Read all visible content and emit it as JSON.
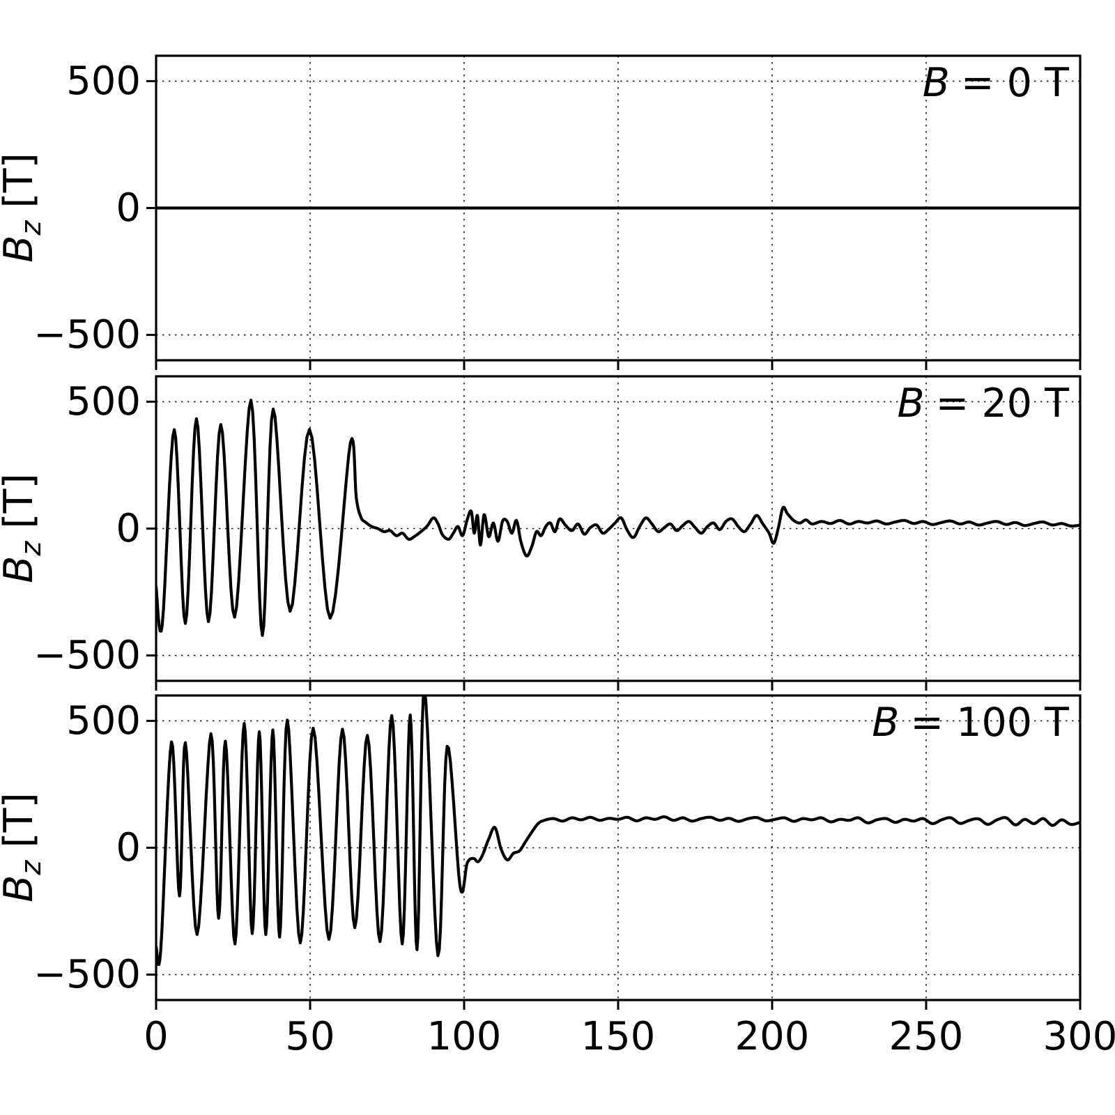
{
  "figure": {
    "background": "#ffffff",
    "line_color": "#000000",
    "grid_color": "#1a1a1a",
    "axis_color": "#000000"
  },
  "chart_data": {
    "type": "line",
    "xlabel": "",
    "ylabel_sym": "B",
    "ylabel_sub": "z",
    "ylabel_unit": "[T]",
    "xlim": [
      0,
      300
    ],
    "ylim": [
      -600,
      600
    ],
    "grid": true,
    "legend": "none",
    "xtick_values": [
      0,
      50,
      100,
      150,
      200,
      250,
      300
    ],
    "xtick_labels": [
      "0",
      "50",
      "100",
      "150",
      "200",
      "250",
      "300"
    ],
    "ytick_values": [
      500,
      0,
      -500
    ],
    "panels": [
      {
        "annotation_sym": "B",
        "annotation_rest": "= 0 T",
        "ytick_labels": [
          "500",
          "0",
          "−500"
        ],
        "points": [
          [
            0,
            0
          ],
          [
            300,
            0
          ]
        ]
      },
      {
        "annotation_sym": "B",
        "annotation_rest": "= 20 T",
        "ytick_labels": [
          "500",
          "0",
          "−500"
        ],
        "points": [
          [
            0,
            -230
          ],
          [
            2,
            -380
          ],
          [
            5.9,
            390
          ],
          [
            9.5,
            -374
          ],
          [
            13.1,
            433
          ],
          [
            17,
            -367
          ],
          [
            21,
            410
          ],
          [
            25.5,
            -349
          ],
          [
            30.8,
            506
          ],
          [
            34.5,
            -421
          ],
          [
            38,
            471
          ],
          [
            43.5,
            -326
          ],
          [
            49.8,
            391
          ],
          [
            56.5,
            -353
          ],
          [
            63.1,
            340
          ],
          [
            65,
            120
          ],
          [
            66.5,
            45
          ],
          [
            68,
            25
          ],
          [
            70,
            8
          ],
          [
            72,
            0
          ],
          [
            74,
            -12
          ],
          [
            76,
            -8
          ],
          [
            78,
            -28
          ],
          [
            80,
            -18
          ],
          [
            82,
            -42
          ],
          [
            84,
            -30
          ],
          [
            86,
            -12
          ],
          [
            88,
            10
          ],
          [
            90,
            42
          ],
          [
            91.5,
            20
          ],
          [
            93,
            -25
          ],
          [
            95,
            -42
          ],
          [
            96.5,
            -18
          ],
          [
            98,
            8
          ],
          [
            99.5,
            -28
          ],
          [
            101,
            35
          ],
          [
            102.3,
            68
          ],
          [
            103.3,
            -18
          ],
          [
            104.3,
            52
          ],
          [
            105.3,
            -65
          ],
          [
            106.5,
            55
          ],
          [
            108,
            -32
          ],
          [
            109.5,
            22
          ],
          [
            111,
            -50
          ],
          [
            112.5,
            30
          ],
          [
            114,
            28
          ],
          [
            115.5,
            -18
          ],
          [
            117,
            32
          ],
          [
            118.5,
            -55
          ],
          [
            120.3,
            -108
          ],
          [
            122,
            -70
          ],
          [
            123.5,
            -12
          ],
          [
            125,
            -28
          ],
          [
            126.5,
            8
          ],
          [
            128,
            22
          ],
          [
            129.5,
            -12
          ],
          [
            131,
            38
          ],
          [
            133,
            12
          ],
          [
            135,
            -8
          ],
          [
            137,
            18
          ],
          [
            139,
            -22
          ],
          [
            141,
            4
          ],
          [
            143,
            14
          ],
          [
            145,
            -18
          ],
          [
            147,
            -2
          ],
          [
            149,
            22
          ],
          [
            151,
            42
          ],
          [
            153,
            -8
          ],
          [
            155,
            -35
          ],
          [
            157,
            8
          ],
          [
            159,
            42
          ],
          [
            161,
            18
          ],
          [
            163,
            -12
          ],
          [
            165,
            4
          ],
          [
            167,
            18
          ],
          [
            169,
            -8
          ],
          [
            171,
            12
          ],
          [
            173,
            28
          ],
          [
            175,
            4
          ],
          [
            177,
            -18
          ],
          [
            179,
            8
          ],
          [
            181,
            22
          ],
          [
            183,
            -4
          ],
          [
            185,
            28
          ],
          [
            187,
            38
          ],
          [
            189,
            8
          ],
          [
            191,
            -12
          ],
          [
            193,
            18
          ],
          [
            195,
            52
          ],
          [
            197,
            18
          ],
          [
            199,
            -18
          ],
          [
            200.5,
            -58
          ],
          [
            202,
            2
          ],
          [
            203.5,
            82
          ],
          [
            205,
            58
          ],
          [
            207,
            32
          ],
          [
            209,
            22
          ],
          [
            211,
            34
          ],
          [
            213,
            18
          ],
          [
            216,
            28
          ],
          [
            219,
            20
          ],
          [
            222,
            32
          ],
          [
            225,
            18
          ],
          [
            228,
            28
          ],
          [
            231,
            22
          ],
          [
            234,
            30
          ],
          [
            237,
            18
          ],
          [
            240,
            26
          ],
          [
            243,
            32
          ],
          [
            246,
            20
          ],
          [
            249,
            28
          ],
          [
            252,
            16
          ],
          [
            255,
            24
          ],
          [
            258,
            30
          ],
          [
            261,
            18
          ],
          [
            264,
            26
          ],
          [
            267,
            14
          ],
          [
            270,
            22
          ],
          [
            273,
            28
          ],
          [
            276,
            16
          ],
          [
            279,
            24
          ],
          [
            282,
            12
          ],
          [
            285,
            20
          ],
          [
            288,
            26
          ],
          [
            291,
            14
          ],
          [
            294,
            20
          ],
          [
            297,
            10
          ],
          [
            300,
            14
          ]
        ]
      },
      {
        "annotation_sym": "B",
        "annotation_rest": "= 100 T",
        "ytick_labels": [
          "500",
          "0",
          "−500"
        ],
        "points": [
          [
            0,
            -390
          ],
          [
            1.5,
            -405
          ],
          [
            5,
            417
          ],
          [
            7.6,
            -190
          ],
          [
            9.5,
            414
          ],
          [
            13.3,
            -342
          ],
          [
            17.8,
            449
          ],
          [
            20.3,
            -278
          ],
          [
            22.5,
            420
          ],
          [
            25.6,
            -379
          ],
          [
            28.6,
            490
          ],
          [
            31.2,
            -338
          ],
          [
            33.5,
            457
          ],
          [
            35.6,
            -342
          ],
          [
            37.9,
            464
          ],
          [
            40.1,
            -352
          ],
          [
            42.6,
            503
          ],
          [
            46.8,
            -375
          ],
          [
            51,
            471
          ],
          [
            56.1,
            -361
          ],
          [
            60.5,
            467
          ],
          [
            64.5,
            -315
          ],
          [
            68.6,
            443
          ],
          [
            72.7,
            -370
          ],
          [
            76.5,
            521
          ],
          [
            79.9,
            -379
          ],
          [
            82.5,
            523
          ],
          [
            84.7,
            -402
          ],
          [
            87.1,
            625
          ],
          [
            91.5,
            -425
          ],
          [
            94.5,
            400
          ],
          [
            98.7,
            -155
          ],
          [
            101,
            -60
          ],
          [
            103,
            -42
          ],
          [
            104.5,
            -55
          ],
          [
            106,
            -28
          ],
          [
            108,
            35
          ],
          [
            110,
            80
          ],
          [
            112,
            -5
          ],
          [
            114,
            -48
          ],
          [
            116,
            -22
          ],
          [
            118,
            -12
          ],
          [
            120,
            25
          ],
          [
            122,
            62
          ],
          [
            124,
            95
          ],
          [
            126,
            108
          ],
          [
            129,
            115
          ],
          [
            132,
            105
          ],
          [
            135,
            118
          ],
          [
            138,
            110
          ],
          [
            141,
            120
          ],
          [
            144,
            108
          ],
          [
            147,
            116
          ],
          [
            150,
            112
          ],
          [
            153,
            120
          ],
          [
            156,
            106
          ],
          [
            159,
            118
          ],
          [
            162,
            112
          ],
          [
            165,
            122
          ],
          [
            168,
            108
          ],
          [
            171,
            118
          ],
          [
            174,
            105
          ],
          [
            177,
            115
          ],
          [
            180,
            120
          ],
          [
            183,
            108
          ],
          [
            186,
            116
          ],
          [
            189,
            104
          ],
          [
            192,
            114
          ],
          [
            195,
            119
          ],
          [
            198,
            106
          ],
          [
            201,
            112
          ],
          [
            204,
            118
          ],
          [
            207,
            104
          ],
          [
            210,
            115
          ],
          [
            213,
            110
          ],
          [
            216,
            118
          ],
          [
            219,
            102
          ],
          [
            222,
            112
          ],
          [
            225,
            108
          ],
          [
            228,
            118
          ],
          [
            231,
            98
          ],
          [
            234,
            110
          ],
          [
            237,
            115
          ],
          [
            240,
            100
          ],
          [
            243,
            112
          ],
          [
            246,
            105
          ],
          [
            249,
            115
          ],
          [
            252,
            95
          ],
          [
            255,
            110
          ],
          [
            258,
            118
          ],
          [
            261,
            96
          ],
          [
            264,
            108
          ],
          [
            267,
            114
          ],
          [
            270,
            92
          ],
          [
            273,
            110
          ],
          [
            276,
            118
          ],
          [
            279,
            90
          ],
          [
            282,
            112
          ],
          [
            285,
            95
          ],
          [
            288,
            115
          ],
          [
            291,
            88
          ],
          [
            294,
            110
          ],
          [
            297,
            92
          ],
          [
            300,
            100
          ]
        ]
      }
    ]
  }
}
